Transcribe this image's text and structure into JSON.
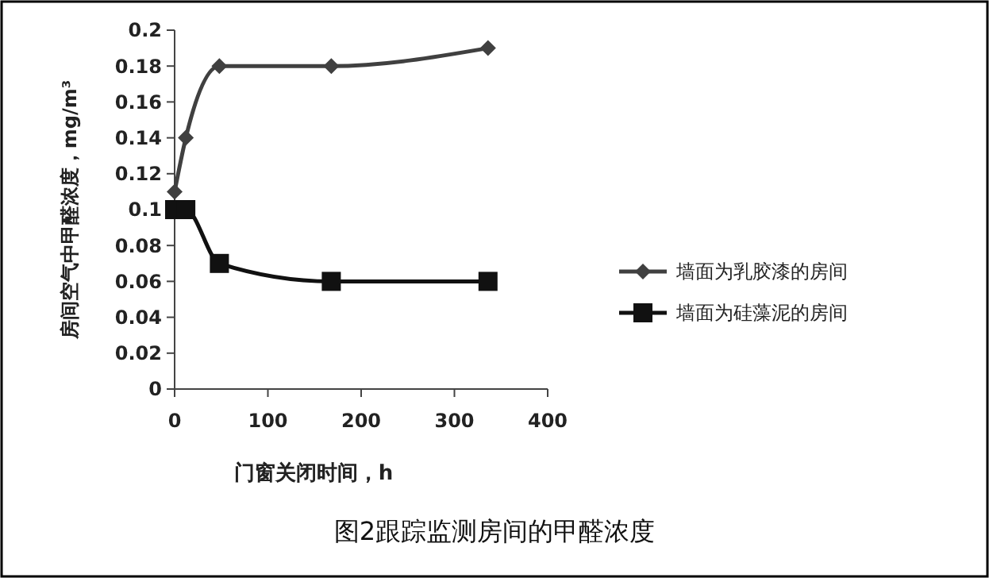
{
  "chart_data": {
    "type": "line",
    "title": "图2跟踪监测房间的甲醛浓度",
    "xlabel": "门窗关闭时间，h",
    "ylabel": "房间空气中甲醛浓度，mg/m³",
    "x": [
      0,
      12,
      48,
      168,
      336
    ],
    "series": [
      {
        "name": "墙面为乳胶漆的房间",
        "color": "#404040",
        "marker": "diamond",
        "values": [
          0.11,
          0.14,
          0.18,
          0.18,
          0.19
        ]
      },
      {
        "name": "墙面为硅藻泥的房间",
        "color": "#111111",
        "marker": "square",
        "values": [
          0.1,
          0.1,
          0.07,
          0.06,
          0.06
        ]
      }
    ],
    "xlim": [
      0,
      400
    ],
    "xticks": [
      0,
      100,
      200,
      300,
      400
    ],
    "ylim": [
      0,
      0.2
    ],
    "yticks": [
      0,
      0.02,
      0.04,
      0.06,
      0.08,
      0.1,
      0.12,
      0.14,
      0.16,
      0.18,
      0.2
    ],
    "grid": false,
    "legend": "right",
    "line_style": "solid"
  }
}
